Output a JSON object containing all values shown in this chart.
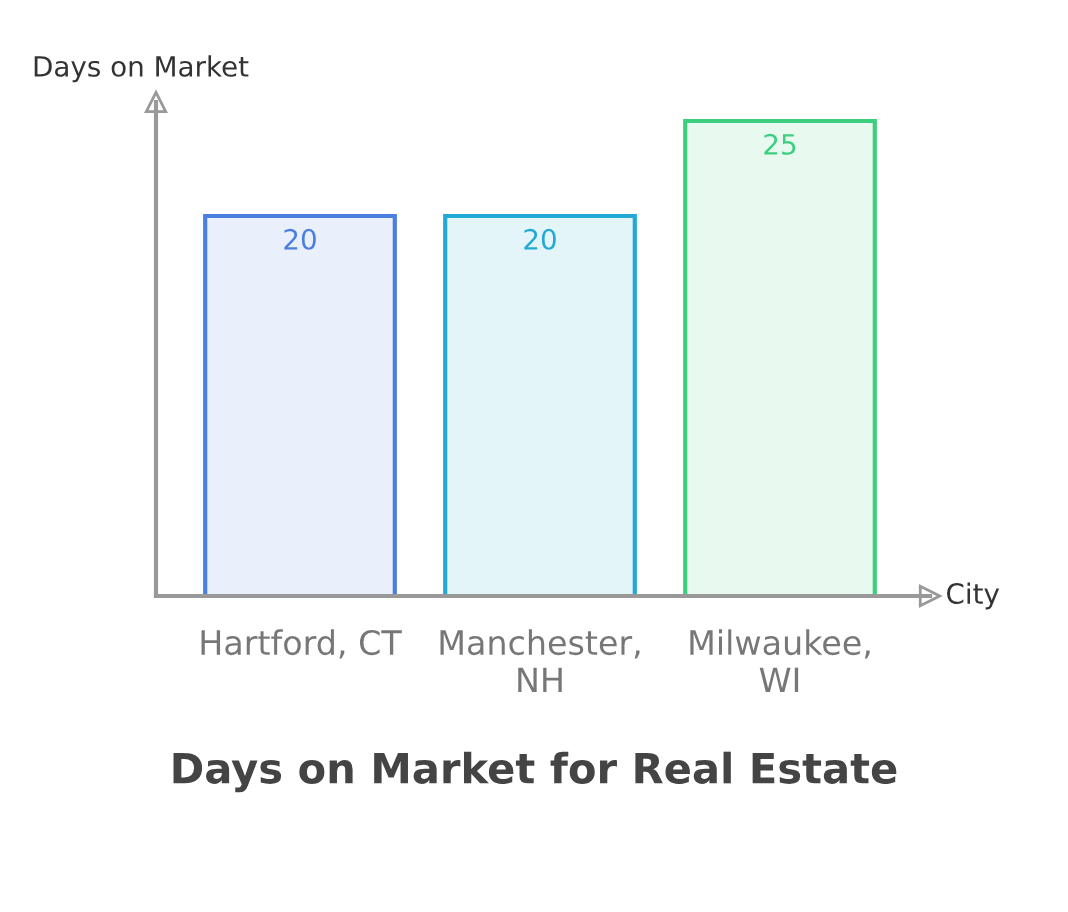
{
  "chart_data": {
    "type": "bar",
    "title": "Days on Market for Real Estate",
    "xlabel": "City",
    "ylabel": "Days on Market",
    "categories": [
      "Hartford, CT",
      "Manchester,\nNH",
      "Milwaukee,\nWI"
    ],
    "values": [
      20,
      20,
      25
    ],
    "colors": [
      "#4a7fe0",
      "#22a9d6",
      "#3ccf7e"
    ],
    "ylim": [
      0,
      26
    ],
    "tick_labels": "x",
    "data_labels": true,
    "grid": false,
    "legend": false
  }
}
